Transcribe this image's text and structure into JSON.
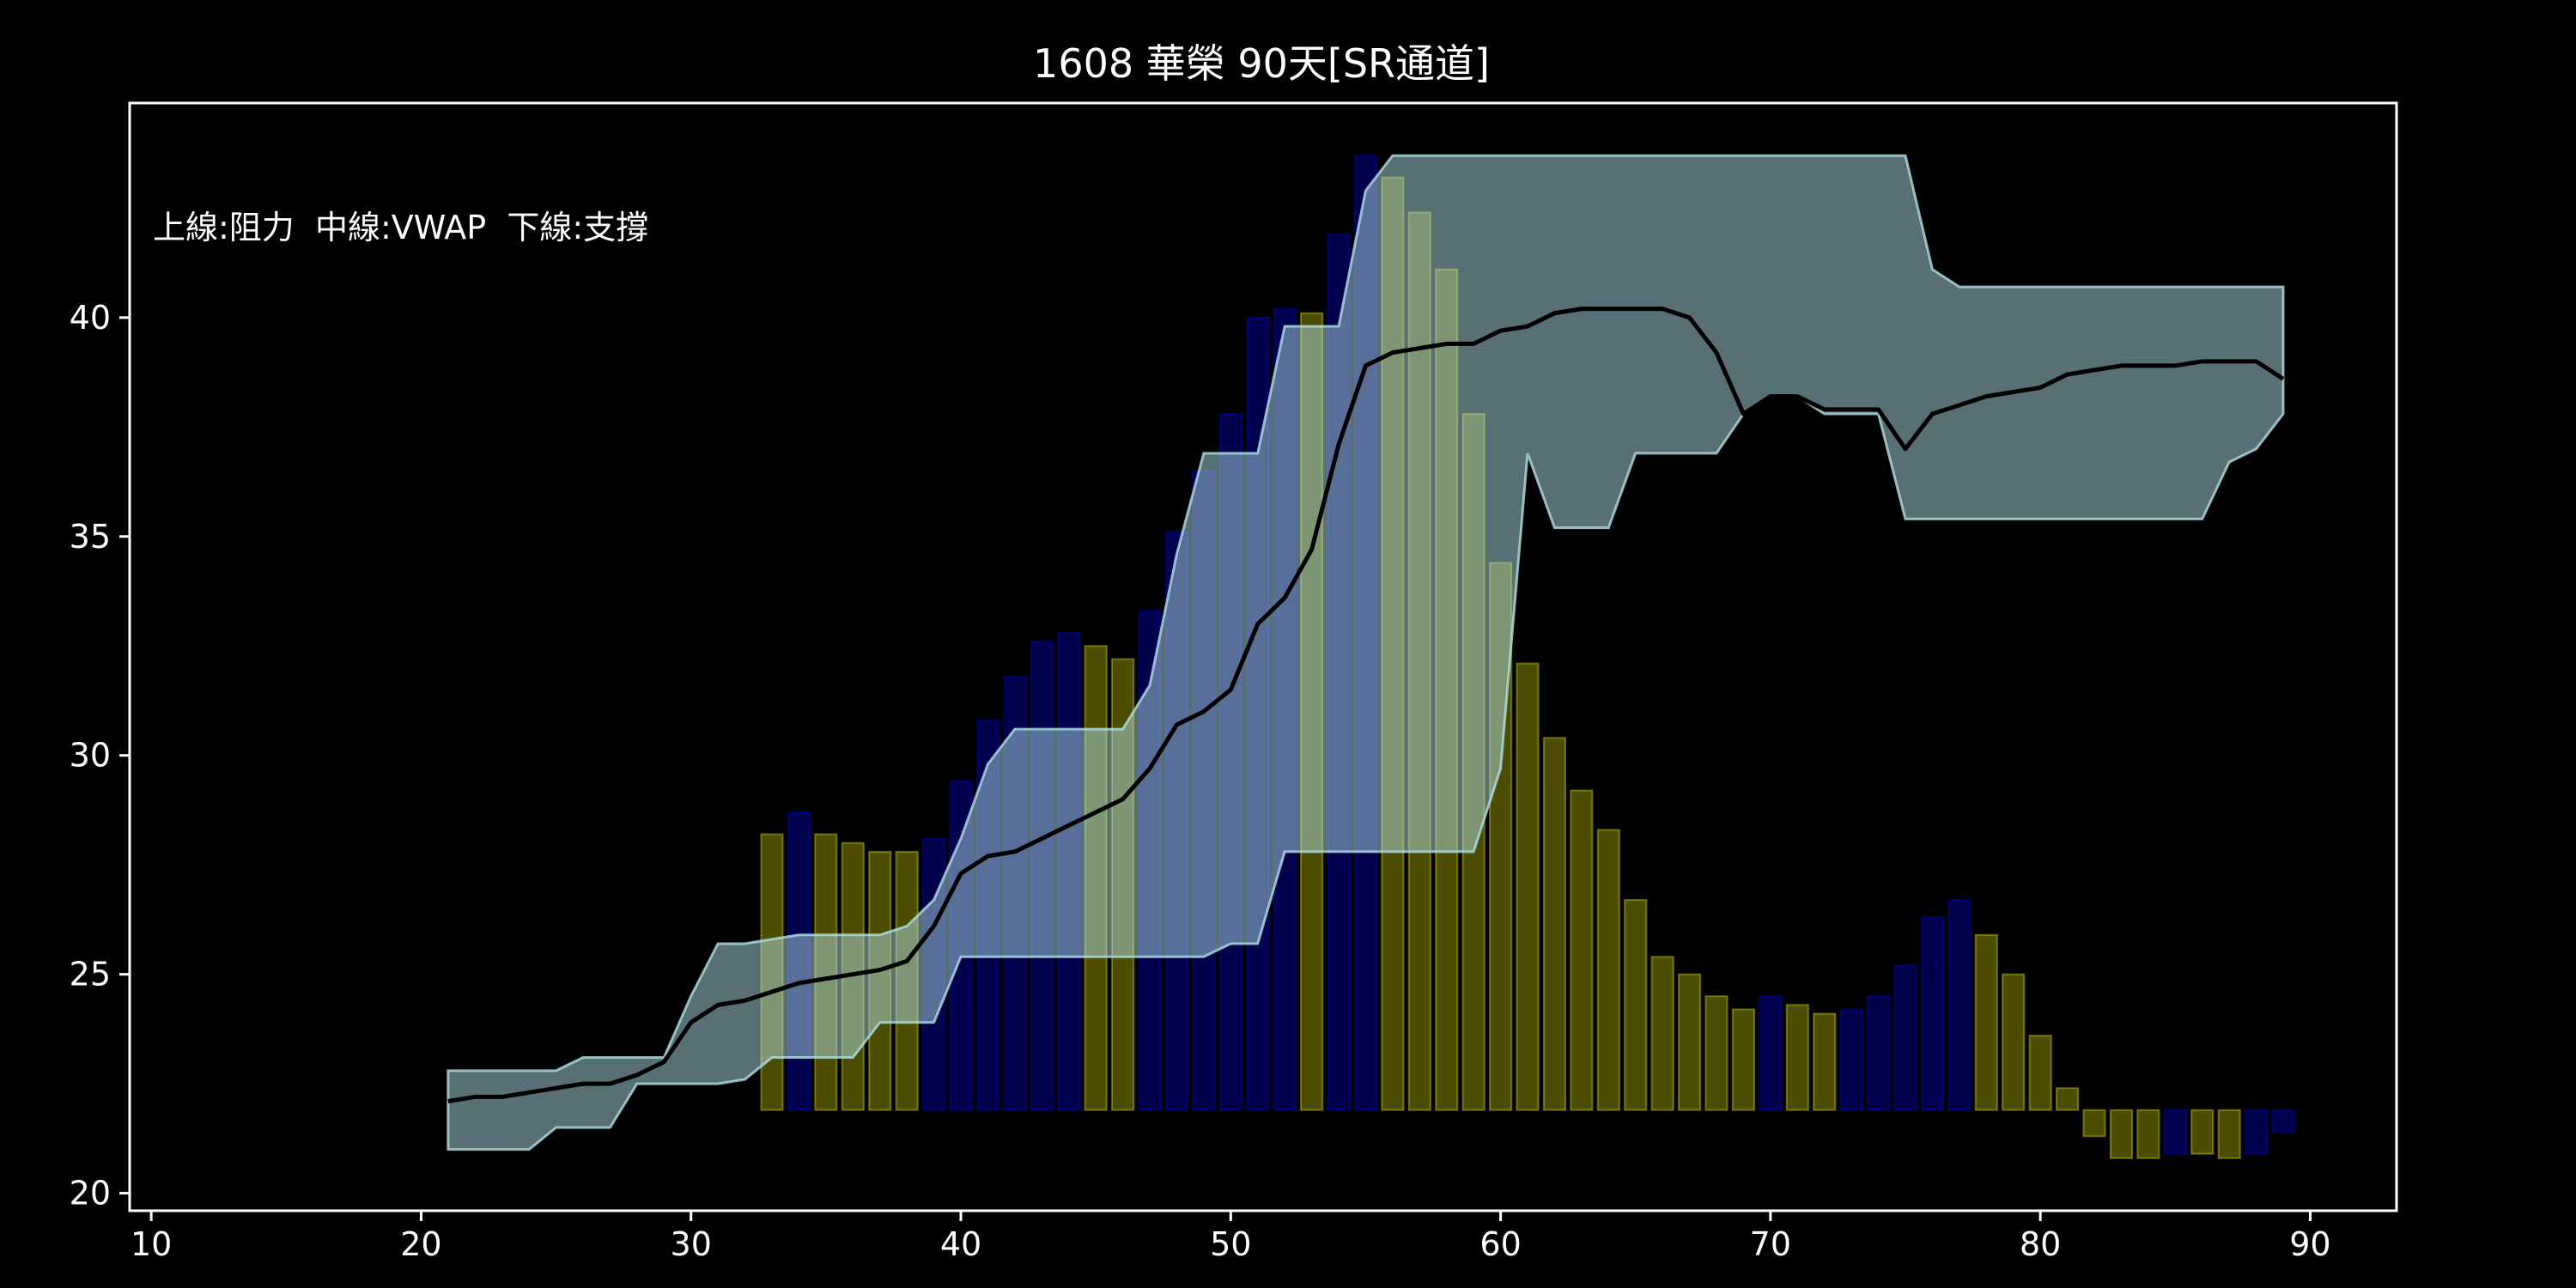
{
  "chart_data": {
    "type": "bar",
    "title": "1608 華榮 90天[SR通道]",
    "annotation": "上線:阻力  中線:VWAP  下線:支撐",
    "xlabel": "",
    "ylabel": "",
    "xlim": [
      9.2,
      93.2
    ],
    "ylim": [
      19.6,
      44.9
    ],
    "x_ticks": [
      10,
      20,
      30,
      40,
      50,
      60,
      70,
      80,
      90
    ],
    "y_ticks": [
      20,
      25,
      30,
      35,
      40
    ],
    "grid": false,
    "background": "#000000",
    "colors": {
      "up_bar": "#ffff00",
      "down_bar": "#0000ff",
      "band_fill": "#b0e0e6",
      "band_edge": "#b0e0e6",
      "vwap_line": "#000000",
      "axes": "#ffffff"
    },
    "volume_bars": {
      "base": 21.9,
      "bar_width": 0.8,
      "x": [
        33,
        34,
        35,
        36,
        37,
        38,
        39,
        40,
        41,
        42,
        43,
        44,
        45,
        46,
        47,
        48,
        49,
        50,
        51,
        52,
        53,
        54,
        55,
        56,
        57,
        58,
        59,
        60,
        61,
        62,
        63,
        64,
        65,
        66,
        67,
        68,
        69,
        70,
        71,
        72,
        73,
        74,
        75,
        76,
        77,
        78,
        79,
        80,
        81,
        82,
        83,
        84,
        85,
        86,
        87,
        88,
        89
      ],
      "values": [
        28.2,
        28.7,
        28.2,
        28.0,
        27.8,
        27.8,
        28.1,
        29.4,
        30.8,
        31.8,
        32.6,
        32.8,
        32.5,
        32.2,
        33.3,
        35.1,
        36.5,
        37.8,
        40.0,
        40.2,
        40.1,
        41.9,
        43.7,
        43.2,
        42.4,
        41.1,
        37.8,
        34.4,
        32.1,
        30.4,
        29.2,
        28.3,
        26.7,
        25.4,
        25.0,
        24.5,
        24.2,
        24.5,
        24.3,
        24.1,
        24.2,
        24.5,
        25.2,
        26.3,
        26.7,
        25.9,
        25.0,
        23.6,
        22.4,
        21.3,
        20.8,
        20.8,
        20.9,
        20.9,
        20.8,
        20.9,
        21.4
      ],
      "direction": [
        "up",
        "down",
        "up",
        "up",
        "up",
        "up",
        "down",
        "down",
        "down",
        "down",
        "down",
        "down",
        "up",
        "up",
        "down",
        "down",
        "down",
        "down",
        "down",
        "down",
        "up",
        "down",
        "down",
        "up",
        "up",
        "up",
        "up",
        "up",
        "up",
        "up",
        "up",
        "up",
        "up",
        "up",
        "up",
        "up",
        "up",
        "down",
        "up",
        "up",
        "down",
        "down",
        "down",
        "down",
        "down",
        "up",
        "up",
        "up",
        "up",
        "up",
        "up",
        "up",
        "down",
        "up",
        "up",
        "down",
        "down"
      ]
    },
    "sr_band": {
      "x": [
        21,
        22,
        23,
        24,
        25,
        26,
        27,
        28,
        29,
        30,
        31,
        32,
        33,
        34,
        35,
        36,
        37,
        38,
        39,
        40,
        41,
        42,
        43,
        44,
        45,
        46,
        47,
        48,
        49,
        50,
        51,
        52,
        53,
        54,
        55,
        56,
        57,
        58,
        59,
        60,
        61,
        62,
        63,
        64,
        65,
        66,
        67,
        68,
        69,
        70,
        71,
        72,
        73,
        74,
        75,
        76,
        77,
        78,
        79,
        80,
        81,
        82,
        83,
        84,
        85,
        86,
        87,
        88,
        89
      ],
      "resistance": [
        22.8,
        22.8,
        22.8,
        22.8,
        22.8,
        23.1,
        23.1,
        23.1,
        23.1,
        24.5,
        25.7,
        25.7,
        25.8,
        25.9,
        25.9,
        25.9,
        25.9,
        26.1,
        26.7,
        28.1,
        29.8,
        30.6,
        30.6,
        30.6,
        30.6,
        30.6,
        31.6,
        34.6,
        36.9,
        36.9,
        36.9,
        39.8,
        39.8,
        39.8,
        42.9,
        43.7,
        43.7,
        43.7,
        43.7,
        43.7,
        43.7,
        43.7,
        43.7,
        43.7,
        43.7,
        43.7,
        43.7,
        43.7,
        43.7,
        43.7,
        43.7,
        43.7,
        43.7,
        43.7,
        43.7,
        41.1,
        40.7,
        40.7,
        40.7,
        40.7,
        40.7,
        40.7,
        40.7,
        40.7,
        40.7,
        40.7,
        40.7,
        40.7,
        40.7
      ],
      "support": [
        21.0,
        21.0,
        21.0,
        21.0,
        21.5,
        21.5,
        21.5,
        22.5,
        22.5,
        22.5,
        22.5,
        22.6,
        23.1,
        23.1,
        23.1,
        23.1,
        23.9,
        23.9,
        23.9,
        25.4,
        25.4,
        25.4,
        25.4,
        25.4,
        25.4,
        25.4,
        25.4,
        25.4,
        25.4,
        25.7,
        25.7,
        27.8,
        27.8,
        27.8,
        27.8,
        27.8,
        27.8,
        27.8,
        27.8,
        29.7,
        36.9,
        35.2,
        35.2,
        35.2,
        36.9,
        36.9,
        36.9,
        36.9,
        37.8,
        38.2,
        38.2,
        37.8,
        37.8,
        37.8,
        35.4,
        35.4,
        35.4,
        35.4,
        35.4,
        35.4,
        35.4,
        35.4,
        35.4,
        35.4,
        35.4,
        35.4,
        36.7,
        37.0,
        37.8
      ]
    },
    "vwap": {
      "x": [
        21,
        22,
        23,
        24,
        25,
        26,
        27,
        28,
        29,
        30,
        31,
        32,
        33,
        34,
        35,
        36,
        37,
        38,
        39,
        40,
        41,
        42,
        43,
        44,
        45,
        46,
        47,
        48,
        49,
        50,
        51,
        52,
        53,
        54,
        55,
        56,
        57,
        58,
        59,
        60,
        61,
        62,
        63,
        64,
        65,
        66,
        67,
        68,
        69,
        70,
        71,
        72,
        73,
        74,
        75,
        76,
        77,
        78,
        79,
        80,
        81,
        82,
        83,
        84,
        85,
        86,
        87,
        88,
        89
      ],
      "values": [
        22.1,
        22.2,
        22.2,
        22.3,
        22.4,
        22.5,
        22.5,
        22.7,
        23.0,
        23.9,
        24.3,
        24.4,
        24.6,
        24.8,
        24.9,
        25.0,
        25.1,
        25.3,
        26.1,
        27.3,
        27.7,
        27.8,
        28.1,
        28.4,
        28.7,
        29.0,
        29.7,
        30.7,
        31.0,
        31.5,
        33.0,
        33.6,
        34.7,
        37.1,
        38.9,
        39.2,
        39.3,
        39.4,
        39.4,
        39.7,
        39.8,
        40.1,
        40.2,
        40.2,
        40.2,
        40.2,
        40.0,
        39.2,
        37.8,
        38.2,
        38.2,
        37.9,
        37.9,
        37.9,
        37.0,
        37.8,
        38.0,
        38.2,
        38.3,
        38.4,
        38.7,
        38.8,
        38.9,
        38.9,
        38.9,
        39.0,
        39.0,
        39.0,
        38.6
      ]
    }
  }
}
